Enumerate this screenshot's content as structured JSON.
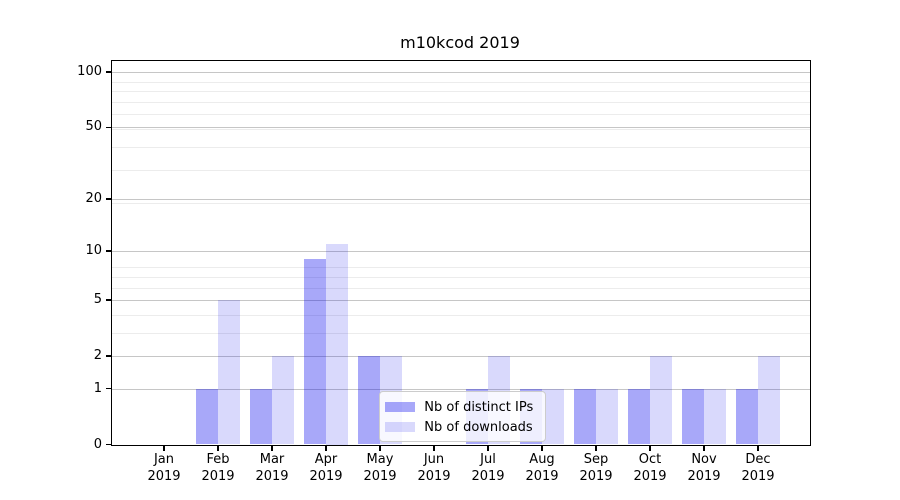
{
  "chart_data": {
    "type": "bar",
    "title": "m10kcod 2019",
    "categories": [
      "Jan 2019",
      "Feb 2019",
      "Mar 2019",
      "Apr 2019",
      "May 2019",
      "Jun 2019",
      "Jul 2019",
      "Aug 2019",
      "Sep 2019",
      "Oct 2019",
      "Nov 2019",
      "Dec 2019"
    ],
    "month_labels": [
      "Jan",
      "Feb",
      "Mar",
      "Apr",
      "May",
      "Jun",
      "Jul",
      "Aug",
      "Sep",
      "Oct",
      "Nov",
      "Dec"
    ],
    "x_tick_year": "2019",
    "series": [
      {
        "name": "Nb of distinct IPs",
        "color": "rgba(0,0,238,0.34)",
        "values": [
          0,
          1,
          1,
          9,
          2,
          0,
          1,
          1,
          1,
          1,
          1,
          1
        ]
      },
      {
        "name": "Nb of downloads",
        "color": "rgba(0,0,238,0.15)",
        "values": [
          0,
          5,
          2,
          11,
          2,
          0,
          2,
          1,
          1,
          2,
          1,
          2
        ]
      }
    ],
    "yscale": "log1p",
    "ylim": [
      0,
      115
    ],
    "y_major_ticks": [
      0,
      1,
      2,
      5,
      10,
      20,
      50,
      100
    ],
    "y_minor_ticks": [
      3,
      4,
      6,
      7,
      8,
      19,
      29,
      39,
      49,
      59,
      69,
      79,
      89
    ],
    "grid": true,
    "legend_position": "lower center",
    "colors": {
      "grid_major": "#c6c6c6",
      "grid_minor": "#ececec",
      "spine": "#000000",
      "text": "#000000"
    }
  }
}
